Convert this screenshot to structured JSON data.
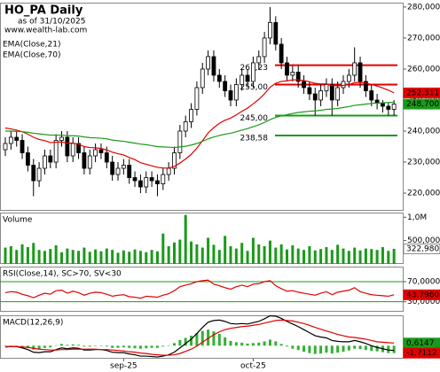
{
  "chart_data": [
    {
      "type": "candlestick",
      "title": "HO_PA Daily",
      "subtitle": "as of 31/10/2025",
      "source": "www.wealth-lab.com",
      "open": [
        234000,
        236000,
        238000,
        237000,
        233000,
        229000,
        224000,
        228000,
        232000,
        230000,
        237000,
        238000,
        232000,
        236000,
        233000,
        228000,
        232000,
        234000,
        233000,
        230000,
        226000,
        228000,
        229000,
        225000,
        224000,
        222000,
        225000,
        224000,
        223000,
        226000,
        228000,
        233000,
        240000,
        243000,
        247000,
        254000,
        260000,
        264000,
        258000,
        256000,
        253000,
        250000,
        255000,
        258000,
        256000,
        262000,
        264000,
        270000,
        275000,
        268000,
        262000,
        258000,
        259000,
        256000,
        254000,
        252000,
        250000,
        253000,
        255000,
        250000,
        254000,
        256000,
        258000,
        262000,
        256000,
        253000,
        250000,
        249000,
        248000,
        247000
      ],
      "high": [
        238000,
        240000,
        240000,
        239000,
        235000,
        231000,
        230000,
        234000,
        234000,
        239000,
        240000,
        240000,
        238000,
        238000,
        235000,
        234000,
        236000,
        236000,
        235000,
        232000,
        230000,
        231000,
        231000,
        227000,
        226000,
        227000,
        227000,
        226000,
        228000,
        230000,
        235000,
        242000,
        245000,
        249000,
        256000,
        262000,
        266000,
        266000,
        260000,
        258000,
        255000,
        257000,
        260000,
        260000,
        264000,
        266000,
        272000,
        280000,
        277000,
        270000,
        264000,
        261000,
        261000,
        258000,
        256000,
        254000,
        255000,
        257000,
        257000,
        256000,
        258000,
        260000,
        267000,
        264000,
        258000,
        255000,
        252000,
        250000,
        249000,
        250000
      ],
      "low": [
        232000,
        234000,
        235000,
        231000,
        227000,
        219000,
        222000,
        226000,
        228000,
        228000,
        235000,
        230000,
        230000,
        231000,
        226000,
        226000,
        230000,
        231000,
        228000,
        224000,
        224000,
        226000,
        223000,
        222000,
        220000,
        220000,
        222000,
        219000,
        221000,
        224000,
        226000,
        231000,
        238000,
        241000,
        245000,
        252000,
        258000,
        256000,
        254000,
        251000,
        248000,
        248000,
        253000,
        254000,
        254000,
        260000,
        262000,
        268000,
        266000,
        260000,
        256000,
        256000,
        254000,
        252000,
        250000,
        245000,
        248000,
        251000,
        245000,
        248000,
        252000,
        254000,
        256000,
        254000,
        251000,
        248000,
        247000,
        246000,
        245000,
        245000
      ],
      "close": [
        236000,
        238000,
        237000,
        233000,
        229000,
        224000,
        228000,
        232000,
        230000,
        237000,
        238000,
        232000,
        236000,
        233000,
        228000,
        232000,
        234000,
        233000,
        230000,
        226000,
        228000,
        229000,
        225000,
        224000,
        222000,
        225000,
        224000,
        223000,
        226000,
        228000,
        233000,
        240000,
        243000,
        247000,
        254000,
        260000,
        264000,
        258000,
        256000,
        253000,
        250000,
        255000,
        258000,
        256000,
        262000,
        264000,
        270000,
        275000,
        268000,
        262000,
        258000,
        259000,
        256000,
        254000,
        252000,
        250000,
        253000,
        255000,
        250000,
        254000,
        256000,
        258000,
        262000,
        256000,
        253000,
        250000,
        249000,
        248000,
        247000,
        248700
      ],
      "series": [
        {
          "name": "EMA(Close,21)",
          "color": "#e00000",
          "values": [
            241000,
            240700,
            240300,
            239800,
            239000,
            238000,
            237300,
            236900,
            236300,
            236400,
            236500,
            236100,
            236100,
            235800,
            235000,
            234700,
            234600,
            234400,
            233900,
            233200,
            232700,
            232300,
            231500,
            230800,
            229800,
            229300,
            228800,
            228300,
            228100,
            228100,
            228600,
            229700,
            231000,
            232500,
            234500,
            236900,
            239400,
            241100,
            242500,
            243500,
            244200,
            245200,
            246400,
            247400,
            248800,
            250200,
            252000,
            254100,
            255400,
            256000,
            256200,
            256500,
            256500,
            256300,
            255900,
            255400,
            255200,
            255200,
            254700,
            254600,
            254700,
            255000,
            255600,
            255700,
            255500,
            255000,
            254500,
            253900,
            253200,
            252311
          ]
        },
        {
          "name": "EMA(Close,70)",
          "color": "#1a9a1a",
          "values": [
            240000,
            240000,
            239900,
            239800,
            239600,
            239300,
            239100,
            238900,
            238700,
            238700,
            238700,
            238500,
            238500,
            238400,
            238100,
            237900,
            237800,
            237700,
            237500,
            237100,
            236900,
            236700,
            236400,
            236100,
            235800,
            235600,
            235300,
            235000,
            234900,
            234800,
            234700,
            234900,
            235100,
            235500,
            236000,
            236700,
            237500,
            238100,
            238600,
            239000,
            239300,
            239800,
            240300,
            240800,
            241400,
            242000,
            242800,
            243700,
            244400,
            244900,
            245300,
            245700,
            246000,
            246200,
            246400,
            246500,
            246700,
            247000,
            247100,
            247300,
            247600,
            247900,
            248300,
            248500,
            248700,
            248900,
            249000,
            249100,
            249200,
            249300
          ]
        }
      ],
      "levels": [
        {
          "value": 261230,
          "label": "261,23",
          "color": "#e00000"
        },
        {
          "value": 255000,
          "label": "255,00",
          "color": "#e00000"
        },
        {
          "value": 245000,
          "label": "245,00",
          "color": "#1a9a1a"
        },
        {
          "value": 238580,
          "label": "238,58",
          "color": "#1a9a1a"
        }
      ],
      "annotations": [
        {
          "value": 252311,
          "label": "252,311",
          "color": "#e00000"
        },
        {
          "value": 248700,
          "label": "248,700",
          "color": "#1a9a1a"
        }
      ],
      "ylim": [
        214300,
        281400
      ],
      "yticks": [
        {
          "value": 220000,
          "label": "220,000"
        },
        {
          "value": 230000,
          "label": "230,000"
        },
        {
          "value": 240000,
          "label": "240,000"
        },
        {
          "value": 250000,
          "label": "250,000"
        },
        {
          "value": 260000,
          "label": "260,000"
        },
        {
          "value": 270000,
          "label": "270,000"
        },
        {
          "value": 280000,
          "label": "280,000"
        }
      ],
      "grid": false
    },
    {
      "type": "combo",
      "title": "Volume",
      "series": [
        {
          "type": "bar",
          "color": "#1a9a1a",
          "values": [
            350000,
            380000,
            300000,
            420000,
            360000,
            450000,
            300000,
            280000,
            320000,
            400000,
            250000,
            330000,
            300000,
            280000,
            350000,
            260000,
            310000,
            270000,
            330000,
            300000,
            240000,
            290000,
            260000,
            310000,
            280000,
            250000,
            300000,
            270000,
            650000,
            380000,
            460000,
            520000,
            1050000,
            480000,
            420000,
            350000,
            560000,
            410000,
            300000,
            600000,
            380000,
            330000,
            450000,
            280000,
            560000,
            420000,
            380000,
            500000,
            350000,
            420000,
            310000,
            400000,
            330000,
            300000,
            380000,
            290000,
            320000,
            360000,
            300000,
            410000,
            330000,
            280000,
            350000,
            290000,
            330000,
            320000,
            300000,
            360000,
            280000,
            322980
          ]
        }
      ],
      "annotations": [
        {
          "value": 322980,
          "label": "322,980",
          "color": "#ffffff"
        }
      ],
      "ylim": [
        0,
        1100000
      ],
      "yticks": [
        {
          "value": 500000,
          "label": "500,000"
        },
        {
          "value": 1000000,
          "label": "1,0M"
        }
      ],
      "grid": false
    },
    {
      "type": "combo",
      "title": "RSI(Close,14), SC>70, SV<30",
      "series": [
        {
          "type": "line",
          "color": "#e00000",
          "values": [
            48,
            50,
            49,
            45,
            42,
            38,
            43,
            47,
            45,
            52,
            53,
            47,
            51,
            48,
            43,
            47,
            49,
            48,
            45,
            41,
            43,
            44,
            40,
            39,
            37,
            41,
            40,
            39,
            43,
            46,
            52,
            60,
            63,
            66,
            70,
            72,
            73,
            65,
            62,
            58,
            55,
            60,
            63,
            60,
            65,
            66,
            70,
            72,
            62,
            56,
            51,
            52,
            49,
            47,
            45,
            43,
            47,
            50,
            44,
            49,
            51,
            53,
            58,
            50,
            47,
            44,
            43,
            42,
            41,
            43.796
          ]
        }
      ],
      "annotations": [
        {
          "value": 43.796,
          "label": "43,7960",
          "color": "#e00000"
        }
      ],
      "ylim": [
        10,
        100
      ],
      "yticks": [
        {
          "value": 30,
          "label": "30,0000"
        },
        {
          "value": 70,
          "label": "70,0000"
        }
      ],
      "grid": true,
      "grid_color": "#1a9a1a"
    },
    {
      "type": "combo",
      "title": "MACD(12,26,9)",
      "categories": [
        null,
        null,
        null,
        null,
        null,
        null,
        null,
        null,
        null,
        null,
        null,
        null,
        null,
        null,
        null,
        null,
        null,
        null,
        null,
        null,
        null,
        "sep-25",
        null,
        null,
        null,
        null,
        null,
        null,
        null,
        null,
        null,
        null,
        null,
        null,
        null,
        null,
        null,
        null,
        null,
        null,
        null,
        null,
        null,
        null,
        "oct-25",
        null,
        null,
        null,
        null,
        null,
        null,
        null,
        null,
        null,
        null,
        null,
        null,
        null,
        null,
        null,
        null,
        null,
        null,
        null,
        null,
        null,
        null,
        null,
        null,
        null
      ],
      "series": [
        {
          "type": "bar",
          "color": "#33b033",
          "values": [
            -0.1,
            0,
            0,
            -0.2,
            -0.5,
            -0.9,
            -0.8,
            -0.5,
            -0.4,
            0.1,
            0.4,
            0.2,
            0.3,
            0.2,
            -0.2,
            -0.2,
            -0.1,
            0,
            -0.2,
            -0.5,
            -0.5,
            -0.4,
            -0.5,
            -0.6,
            -0.7,
            -0.6,
            -0.5,
            -0.5,
            -0.2,
            0.1,
            0.6,
            1.3,
            1.8,
            2.3,
            2.9,
            3.4,
            3.7,
            3.3,
            2.7,
            1.9,
            1.1,
            0.8,
            0.7,
            0.5,
            0.6,
            0.7,
            1.0,
            1.4,
            1.0,
            0.4,
            -0.2,
            -0.7,
            -1.0,
            -1.4,
            -1.7,
            -1.9,
            -1.8,
            -1.6,
            -1.8,
            -1.6,
            -1.4,
            -1.1,
            -0.7,
            -0.8,
            -1.0,
            -1.2,
            -1.3,
            -1.5,
            -1.7,
            -1.7112
          ]
        },
        {
          "type": "line",
          "color": "#000000",
          "values": [
            -0.3,
            -0.2,
            -0.2,
            -0.5,
            -0.9,
            -1.5,
            -1.6,
            -1.4,
            -1.4,
            -0.9,
            -0.5,
            -0.7,
            -0.5,
            -0.6,
            -1.0,
            -1.0,
            -0.9,
            -0.9,
            -1.1,
            -1.5,
            -1.6,
            -1.6,
            -1.9,
            -2.1,
            -2.4,
            -2.4,
            -2.5,
            -2.6,
            -2.4,
            -2.1,
            -1.5,
            -0.5,
            0.5,
            1.5,
            2.8,
            4.2,
            5.4,
            5.8,
            5.9,
            5.6,
            5.1,
            5.0,
            5.1,
            5.0,
            5.3,
            5.6,
            6.2,
            6.9,
            6.8,
            6.3,
            5.6,
            5.0,
            4.4,
            3.7,
            3.0,
            2.3,
            2.0,
            1.8,
            1.2,
            1.0,
            0.9,
            0.9,
            1.2,
            0.9,
            0.5,
            0.0,
            -0.4,
            -0.7,
            -1.0,
            -1.0965
          ]
        },
        {
          "type": "line",
          "color": "#e00000",
          "values": [
            -0.2,
            -0.2,
            -0.2,
            -0.3,
            -0.4,
            -0.6,
            -0.8,
            -0.9,
            -1.0,
            -1.0,
            -0.9,
            -0.9,
            -0.8,
            -0.8,
            -0.8,
            -0.8,
            -0.8,
            -0.9,
            -0.9,
            -1.0,
            -1.1,
            -1.2,
            -1.4,
            -1.5,
            -1.7,
            -1.8,
            -2.0,
            -2.1,
            -2.2,
            -2.2,
            -2.1,
            -1.8,
            -1.3,
            -0.8,
            -0.1,
            0.8,
            1.7,
            2.5,
            3.2,
            3.7,
            4.0,
            4.2,
            4.4,
            4.5,
            4.7,
            4.9,
            5.2,
            5.5,
            5.8,
            5.9,
            5.8,
            5.7,
            5.4,
            5.1,
            4.7,
            4.2,
            3.8,
            3.4,
            3.0,
            2.6,
            2.3,
            2.0,
            1.9,
            1.7,
            1.5,
            1.2,
            0.9,
            0.8,
            0.7,
            0.6147
          ]
        }
      ],
      "annotations": [
        {
          "value": 0.6147,
          "label": "0,6147",
          "color": "#1a9a1a"
        },
        {
          "value": -1.7112,
          "label": "-1,7112",
          "color": "#e00000"
        }
      ],
      "ylim": [
        -3,
        7
      ],
      "grid": false
    }
  ]
}
